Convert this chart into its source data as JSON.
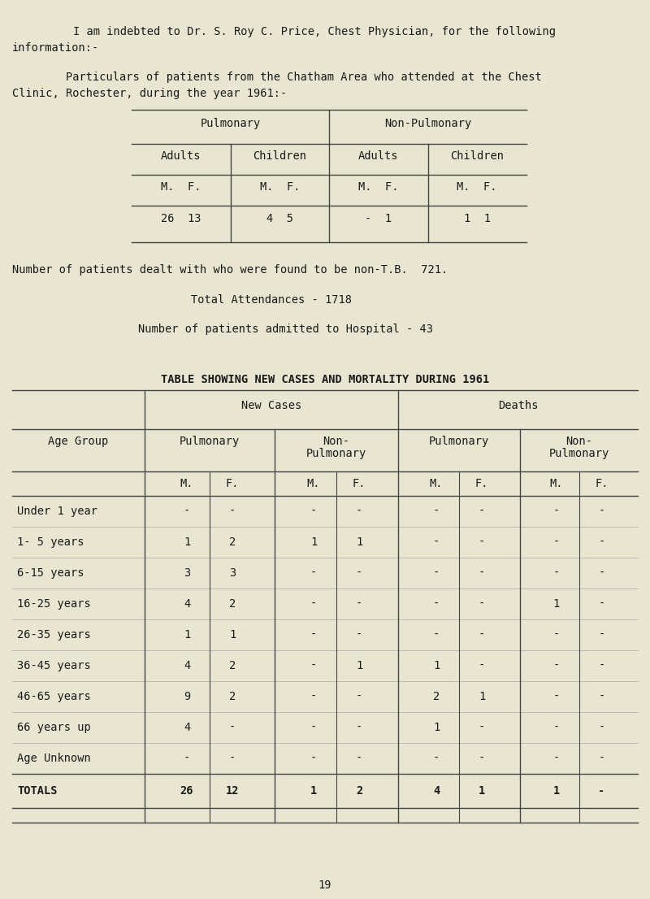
{
  "bg_color": "#e8e5d0",
  "text_color": "#1a1a1a",
  "page_number": "19",
  "intro_line1": "I am indebted to Dr. S. Roy C. Price, Chest Physician, for the following",
  "intro_line2": "information:-",
  "particulars_line1": "        Particulars of patients from the Chatham Area who attended at the Chest",
  "particulars_line2": "Clinic, Rochester, during the year 1961:-",
  "stat1": "Number of patients dealt with who were found to be non-T.B.  721.",
  "stat2": "Total Attendances - 1718",
  "stat3": "Number of patients admitted to Hospital - 43",
  "table2_title": "TABLE SHOWING NEW CASES AND MORTALITY DURING 1961",
  "table1": {
    "data_row": [
      "26  13",
      "4  5",
      "-  1",
      "1  1"
    ]
  },
  "table2": {
    "age_groups": [
      "Under 1 year",
      "1- 5 years",
      "6-15 years",
      "16-25 years",
      "26-35 years",
      "36-45 years",
      "46-65 years",
      "66 years up",
      "Age Unknown",
      "TOTALS"
    ],
    "nc_pulm_M": [
      "-",
      "1",
      "3",
      "4",
      "1",
      "4",
      "9",
      "4",
      "-",
      "26"
    ],
    "nc_pulm_F": [
      "-",
      "2",
      "3",
      "2",
      "1",
      "2",
      "2",
      "-",
      "-",
      "12"
    ],
    "nc_nonpulm_M": [
      "-",
      "1",
      "-",
      "-",
      "-",
      "-",
      "-",
      "-",
      "-",
      "1"
    ],
    "nc_nonpulm_F": [
      "-",
      "1",
      "-",
      "-",
      "-",
      "1",
      "-",
      "-",
      "-",
      "2"
    ],
    "d_pulm_M": [
      "-",
      "-",
      "-",
      "-",
      "-",
      "1",
      "2",
      "1",
      "-",
      "4"
    ],
    "d_pulm_F": [
      "-",
      "-",
      "-",
      "-",
      "-",
      "-",
      "1",
      "-",
      "-",
      "1"
    ],
    "d_nonpulm_M": [
      "-",
      "-",
      "-",
      "1",
      "-",
      "-",
      "-",
      "-",
      "-",
      "1"
    ],
    "d_nonpulm_F": [
      "-",
      "-",
      "-",
      "-",
      "-",
      "-",
      "-",
      "-",
      "-",
      "-"
    ]
  }
}
